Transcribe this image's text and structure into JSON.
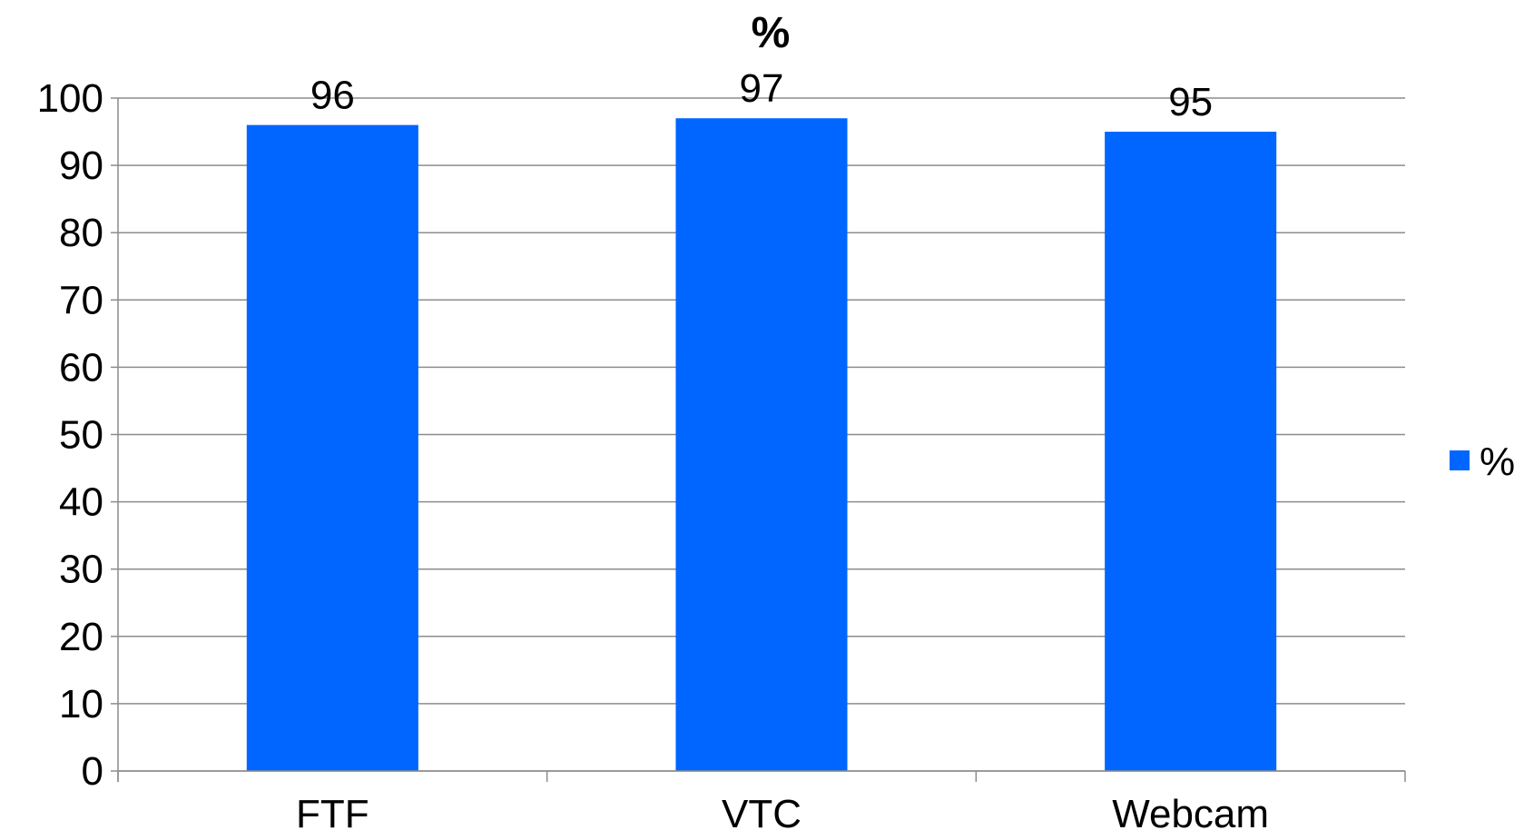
{
  "chart_data": {
    "type": "bar",
    "title": "%",
    "categories": [
      "FTF",
      "VTC",
      "Webcam"
    ],
    "series": [
      {
        "name": "%",
        "values": [
          96,
          97,
          95
        ],
        "color": "#0066ff"
      }
    ],
    "data_labels": [
      "96",
      "97",
      "95"
    ],
    "ylim": [
      0,
      100
    ],
    "yticks": [
      0,
      10,
      20,
      30,
      40,
      50,
      60,
      70,
      80,
      90,
      100
    ],
    "xlabel": "",
    "ylabel": "",
    "grid": true,
    "legend": {
      "position": "right",
      "entries": [
        "%"
      ]
    }
  }
}
